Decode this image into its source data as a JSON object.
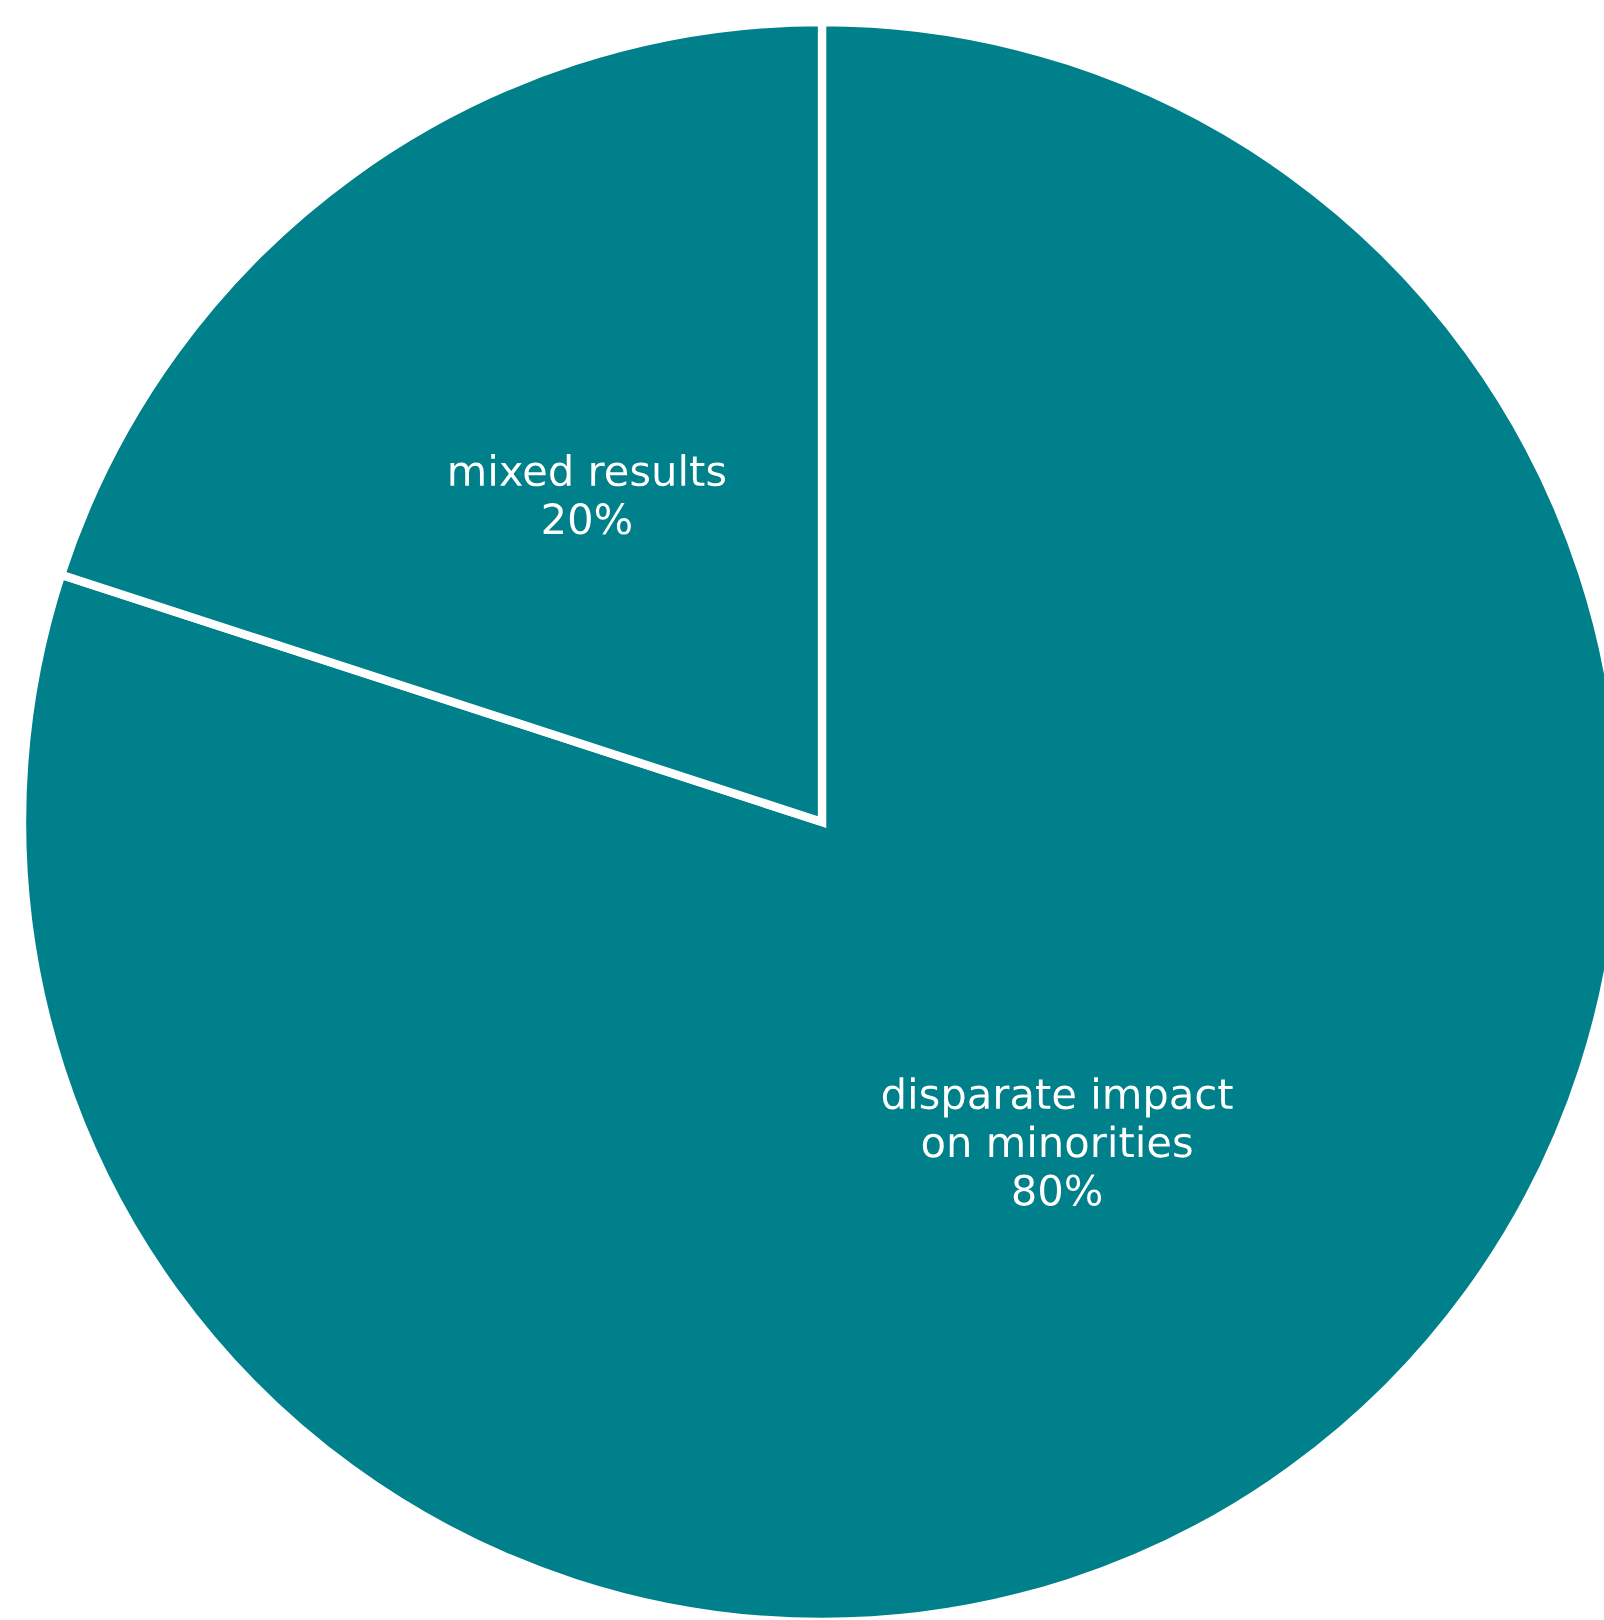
{
  "chart_data": {
    "type": "pie",
    "categories": [
      "disparate impact\non minorities",
      "mixed results"
    ],
    "values": [
      80,
      20
    ],
    "value_labels": [
      "80%",
      "20%"
    ],
    "colors": [
      "#00808a",
      "#00808a"
    ]
  }
}
